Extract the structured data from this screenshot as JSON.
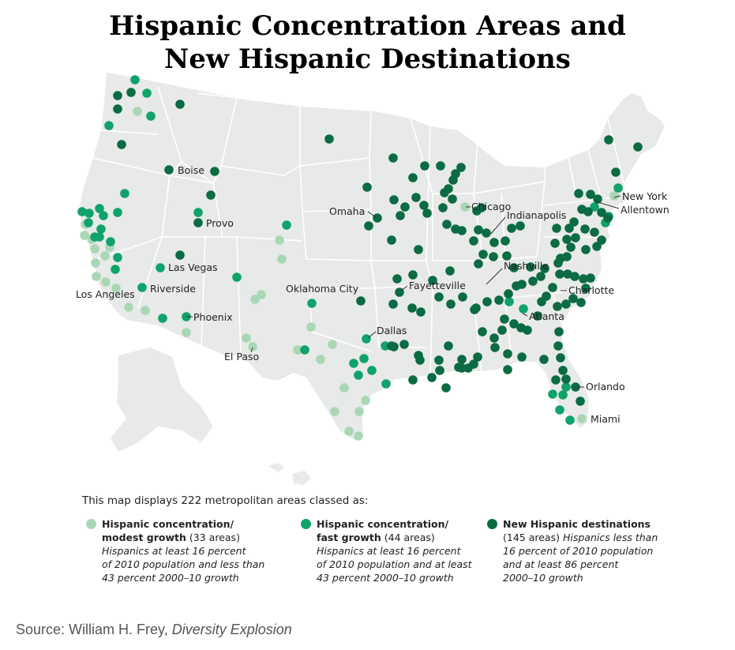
{
  "title": {
    "line1": "Hispanic Concentration Areas and",
    "line2": "New Hispanic Destinations"
  },
  "colors": {
    "modest": "#a9d7b5",
    "fast": "#0fa36b",
    "new": "#0b6b43",
    "land": "#e8e9e9",
    "border": "#ffffff"
  },
  "city_labels": [
    {
      "name": "Boise"
    },
    {
      "name": "Provo"
    },
    {
      "name": "Las Vegas"
    },
    {
      "name": "Riverside"
    },
    {
      "name": "Los Angeles"
    },
    {
      "name": "Phoenix"
    },
    {
      "name": "El Paso"
    },
    {
      "name": "Omaha"
    },
    {
      "name": "Oklahoma City"
    },
    {
      "name": "Dallas"
    },
    {
      "name": "Fayetteville"
    },
    {
      "name": "Chicago"
    },
    {
      "name": "Indianapolis"
    },
    {
      "name": "Nashville"
    },
    {
      "name": "Atlanta"
    },
    {
      "name": "Charlotte"
    },
    {
      "name": "New York"
    },
    {
      "name": "Allentown"
    },
    {
      "name": "Orlando"
    },
    {
      "name": "Miami"
    }
  ],
  "legend": {
    "intro": "This map displays 222 metropolitan areas classed as:",
    "items": [
      {
        "key": "modest",
        "title1": "Hispanic concentration/",
        "title2": "modest growth",
        "count": "(33 areas)",
        "desc": [
          "Hispanics at least 16 percent",
          "of 2010 population and less than",
          "43 percent 2000–10 growth"
        ]
      },
      {
        "key": "fast",
        "title1": "Hispanic concentration/",
        "title2": "fast growth",
        "count": "(44 areas)",
        "desc": [
          "Hispanics at least 16 percent",
          "of 2010 population and at least",
          "43 percent 2000–10 growth"
        ]
      },
      {
        "key": "new",
        "title1": "New Hispanic destinations",
        "count": "(145 areas)",
        "desc_inline": "Hispanics less than",
        "desc": [
          "16 percent of 2010 population",
          "and at least 86 percent",
          "2000–10 growth"
        ]
      }
    ]
  },
  "source": {
    "prefix": "Source: William H. Frey, ",
    "book": "Diversity Explosion"
  }
}
